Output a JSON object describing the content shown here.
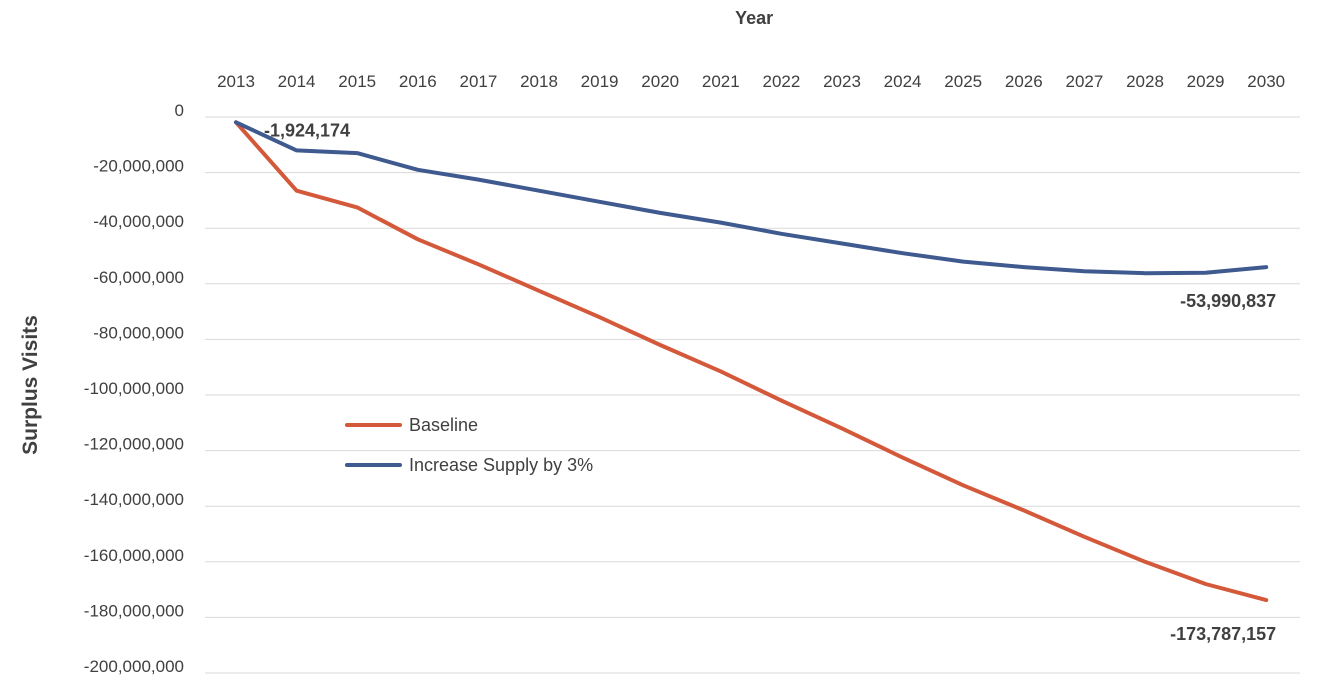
{
  "chart_data": {
    "type": "line",
    "title": "",
    "xlabel": "Year",
    "ylabel": "Surplus Visits",
    "x_axis_position": "top",
    "grid": true,
    "legend_position": "center-left",
    "categories": [
      "2013",
      "2014",
      "2015",
      "2016",
      "2017",
      "2018",
      "2019",
      "2020",
      "2021",
      "2022",
      "2023",
      "2024",
      "2025",
      "2026",
      "2027",
      "2028",
      "2029",
      "2030"
    ],
    "ylim": [
      -200000000,
      0
    ],
    "yticks": [
      0,
      -20000000,
      -40000000,
      -60000000,
      -80000000,
      -100000000,
      -120000000,
      -140000000,
      -160000000,
      -180000000,
      -200000000
    ],
    "ytick_labels": [
      "0",
      "-20,000,000",
      "-40,000,000",
      "-60,000,000",
      "-80,000,000",
      "-100,000,000",
      "-120,000,000",
      "-140,000,000",
      "-160,000,000",
      "-180,000,000",
      "-200,000,000"
    ],
    "series": [
      {
        "name": "Baseline",
        "color": "#D4593A",
        "values": [
          -1924174,
          -26500000,
          -32500000,
          -44000000,
          -53000000,
          -62500000,
          -72000000,
          -82000000,
          -91500000,
          -102000000,
          -112000000,
          -122500000,
          -132500000,
          -141500000,
          -151000000,
          -160000000,
          -168000000,
          -173787157
        ]
      },
      {
        "name": "Increase Supply by 3%",
        "color": "#3F5A8F",
        "values": [
          -1924174,
          -12000000,
          -13000000,
          -19000000,
          -22500000,
          -26500000,
          -30500000,
          -34500000,
          -38000000,
          -42000000,
          -45500000,
          -49000000,
          -52000000,
          -54000000,
          -55500000,
          -56200000,
          -56000000,
          -53990837
        ]
      }
    ],
    "annotations": [
      {
        "text": "-1,924,174",
        "series": 1,
        "index": 0
      },
      {
        "text": "-53,990,837",
        "series": 1,
        "index": 17
      },
      {
        "text": "-173,787,157",
        "series": 0,
        "index": 17
      }
    ]
  }
}
